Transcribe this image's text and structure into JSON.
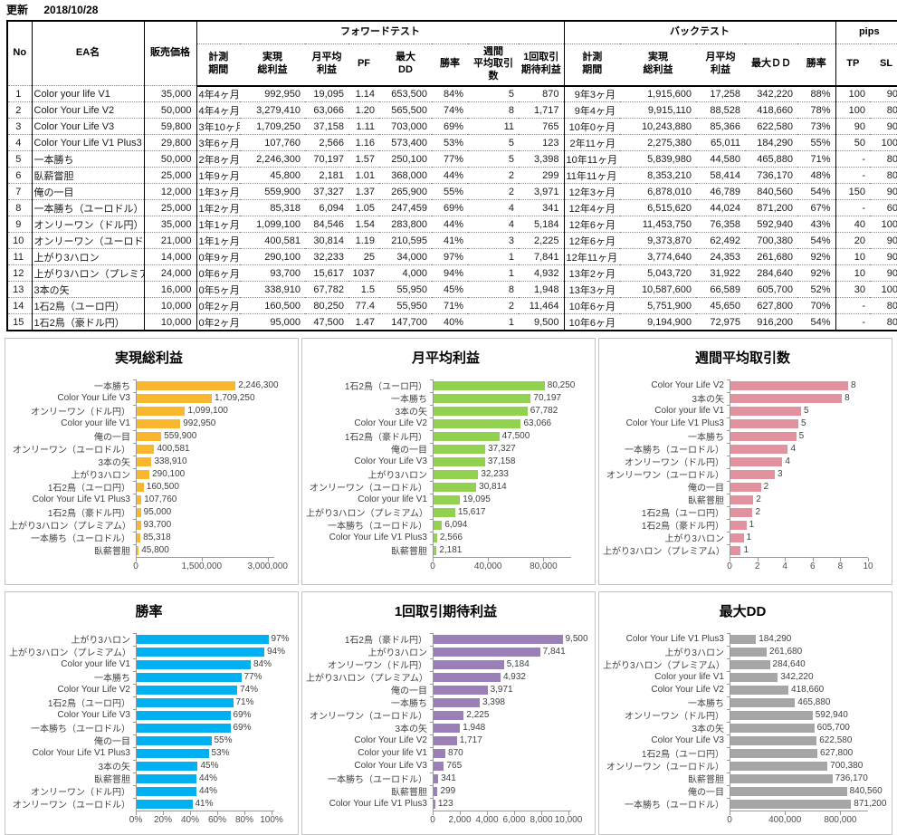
{
  "meta": {
    "update_label": "更新",
    "update_date": "2018/10/28"
  },
  "table": {
    "base_headers": {
      "no": "No",
      "name": "EA名",
      "price": "販売価格"
    },
    "group_headers": {
      "forward": "フォワードテスト",
      "back": "バックテスト",
      "pips": "pips"
    },
    "fwd_cols": [
      "計測\n期間",
      "実現\n総利益",
      "月平均\n利益",
      "PF",
      "最大\nDD",
      "勝率",
      "週間\n平均取引数",
      "1回取引\n期待利益"
    ],
    "back_cols": [
      "計測\n期間",
      "実現\n総利益",
      "月平均\n利益",
      "最大ＤＤ",
      "勝率"
    ],
    "pips_cols": [
      "TP",
      "SL"
    ],
    "rows": [
      [
        "1",
        "Color your life V1",
        "35,000",
        "4年4ヶ月",
        "992,950",
        "19,095",
        "1.14",
        "653,500",
        "84%",
        "5",
        "870",
        "9年3ヶ月",
        "1,915,600",
        "17,258",
        "342,220",
        "88%",
        "100",
        "90"
      ],
      [
        "2",
        "Color Your Life V2",
        "50,000",
        "4年4ヶ月",
        "3,279,410",
        "63,066",
        "1.20",
        "565,500",
        "74%",
        "8",
        "1,717",
        "9年4ヶ月",
        "9,915,110",
        "88,528",
        "418,660",
        "78%",
        "100",
        "80"
      ],
      [
        "3",
        "Color Your Life V3",
        "59,800",
        "3年10ヶ月",
        "1,709,250",
        "37,158",
        "1.11",
        "703,000",
        "69%",
        "11",
        "765",
        "10年0ヶ月",
        "10,243,880",
        "85,366",
        "622,580",
        "73%",
        "90",
        "90"
      ],
      [
        "4",
        "Color Your Life V1 Plus3",
        "29,800",
        "3年6ヶ月",
        "107,760",
        "2,566",
        "1.16",
        "573,400",
        "53%",
        "5",
        "123",
        "2年11ヶ月",
        "2,275,380",
        "65,011",
        "184,290",
        "55%",
        "50",
        "100"
      ],
      [
        "5",
        "一本勝ち",
        "50,000",
        "2年8ヶ月",
        "2,246,300",
        "70,197",
        "1.57",
        "250,100",
        "77%",
        "5",
        "3,398",
        "10年11ヶ月",
        "5,839,980",
        "44,580",
        "465,880",
        "71%",
        "-",
        "80"
      ],
      [
        "6",
        "臥薪嘗胆",
        "25,000",
        "1年9ヶ月",
        "45,800",
        "2,181",
        "1.01",
        "368,000",
        "44%",
        "2",
        "299",
        "11年11ヶ月",
        "8,353,210",
        "58,414",
        "736,170",
        "48%",
        "-",
        "80"
      ],
      [
        "7",
        "俺の一目",
        "12,000",
        "1年3ヶ月",
        "559,900",
        "37,327",
        "1.37",
        "265,900",
        "55%",
        "2",
        "3,971",
        "12年3ヶ月",
        "6,878,010",
        "46,789",
        "840,560",
        "54%",
        "150",
        "90"
      ],
      [
        "8",
        "一本勝ち（ユーロドル）",
        "25,000",
        "1年2ヶ月",
        "85,318",
        "6,094",
        "1.05",
        "247,459",
        "69%",
        "4",
        "341",
        "12年4ヶ月",
        "6,515,620",
        "44,024",
        "871,200",
        "67%",
        "-",
        "60"
      ],
      [
        "9",
        "オンリーワン（ドル円）",
        "35,000",
        "1年1ヶ月",
        "1,099,100",
        "84,546",
        "1.54",
        "283,800",
        "44%",
        "4",
        "5,184",
        "12年6ヶ月",
        "11,453,750",
        "76,358",
        "592,940",
        "43%",
        "40",
        "100"
      ],
      [
        "10",
        "オンリーワン（ユーロドル）",
        "21,000",
        "1年1ヶ月",
        "400,581",
        "30,814",
        "1.19",
        "210,595",
        "41%",
        "3",
        "2,225",
        "12年6ヶ月",
        "9,373,870",
        "62,492",
        "700,380",
        "54%",
        "20",
        "90"
      ],
      [
        "11",
        "上がり3ハロン",
        "14,000",
        "0年9ヶ月",
        "290,100",
        "32,233",
        "25",
        "34,000",
        "97%",
        "1",
        "7,841",
        "12年11ヶ月",
        "3,774,640",
        "24,353",
        "261,680",
        "92%",
        "10",
        "90"
      ],
      [
        "12",
        "上がり3ハロン（プレミアム）",
        "24,000",
        "0年6ヶ月",
        "93,700",
        "15,617",
        "1037",
        "4,000",
        "94%",
        "1",
        "4,932",
        "13年2ヶ月",
        "5,043,720",
        "31,922",
        "284,640",
        "92%",
        "10",
        "90"
      ],
      [
        "13",
        "3本の矢",
        "16,000",
        "0年5ヶ月",
        "338,910",
        "67,782",
        "1.5",
        "55,950",
        "45%",
        "8",
        "1,948",
        "13年3ヶ月",
        "10,587,600",
        "66,589",
        "605,700",
        "52%",
        "30",
        "100"
      ],
      [
        "14",
        "1石2鳥（ユーロ円）",
        "10,000",
        "0年2ヶ月",
        "160,500",
        "80,250",
        "77.4",
        "55,950",
        "71%",
        "2",
        "11,464",
        "10年6ヶ月",
        "5,751,900",
        "45,650",
        "627,800",
        "70%",
        "-",
        "80"
      ],
      [
        "15",
        "1石2鳥（豪ドル円）",
        "10,000",
        "0年2ヶ月",
        "95,000",
        "47,500",
        "1.47",
        "147,700",
        "40%",
        "1",
        "9,500",
        "10年6ヶ月",
        "9,194,900",
        "72,975",
        "916,200",
        "54%",
        "-",
        "80"
      ]
    ]
  },
  "chart_data": [
    {
      "type": "bar",
      "orientation": "horizontal",
      "title": "実現総利益",
      "color": "#FBB62F",
      "xmax": 3150000,
      "grid": false,
      "legend": false,
      "ticks": [
        {
          "v": 0,
          "label": "0"
        },
        {
          "v": 1500000,
          "label": "1,500,000"
        },
        {
          "v": 3000000,
          "label": "3,000,000"
        }
      ],
      "bars": [
        {
          "label": "一本勝ち",
          "value": 2246300,
          "text": "2,246,300"
        },
        {
          "label": "Color Your Life V3",
          "value": 1709250,
          "text": "1,709,250"
        },
        {
          "label": "オンリーワン（ドル円）",
          "value": 1099100,
          "text": "1,099,100"
        },
        {
          "label": "Color your life V1",
          "value": 992950,
          "text": "992,950"
        },
        {
          "label": "俺の一目",
          "value": 559900,
          "text": "559,900"
        },
        {
          "label": "オンリーワン（ユーロドル）",
          "value": 400581,
          "text": "400,581"
        },
        {
          "label": "3本の矢",
          "value": 338910,
          "text": "338,910"
        },
        {
          "label": "上がり3ハロン",
          "value": 290100,
          "text": "290,100"
        },
        {
          "label": "1石2鳥（ユーロ円）",
          "value": 160500,
          "text": "160,500"
        },
        {
          "label": "Color Your Life V1 Plus3",
          "value": 107760,
          "text": "107,760"
        },
        {
          "label": "1石2鳥（豪ドル円）",
          "value": 95000,
          "text": "95,000"
        },
        {
          "label": "上がり3ハロン（プレミアム）",
          "value": 93700,
          "text": "93,700"
        },
        {
          "label": "一本勝ち（ユーロドル）",
          "value": 85318,
          "text": "85,318"
        },
        {
          "label": "臥薪嘗胆",
          "value": 45800,
          "text": "45,800"
        }
      ]
    },
    {
      "type": "bar",
      "orientation": "horizontal",
      "title": "月平均利益",
      "color": "#92D050",
      "xmax": 100000,
      "grid": false,
      "legend": false,
      "ticks": [
        {
          "v": 0,
          "label": "0"
        },
        {
          "v": 40000,
          "label": "40,000"
        },
        {
          "v": 80000,
          "label": "80,000"
        }
      ],
      "bars": [
        {
          "label": "1石2鳥（ユーロ円）",
          "value": 80250,
          "text": "80,250"
        },
        {
          "label": "一本勝ち",
          "value": 70197,
          "text": "70,197"
        },
        {
          "label": "3本の矢",
          "value": 67782,
          "text": "67,782"
        },
        {
          "label": "Color Your Life V2",
          "value": 63066,
          "text": "63,066"
        },
        {
          "label": "1石2鳥（豪ドル円）",
          "value": 47500,
          "text": "47,500"
        },
        {
          "label": "俺の一目",
          "value": 37327,
          "text": "37,327"
        },
        {
          "label": "Color Your Life V3",
          "value": 37158,
          "text": "37,158"
        },
        {
          "label": "上がり3ハロン",
          "value": 32233,
          "text": "32,233"
        },
        {
          "label": "オンリーワン（ユーロドル）",
          "value": 30814,
          "text": "30,814"
        },
        {
          "label": "Color your life V1",
          "value": 19095,
          "text": "19,095"
        },
        {
          "label": "上がり3ハロン（プレミアム）",
          "value": 15617,
          "text": "15,617"
        },
        {
          "label": "一本勝ち（ユーロドル）",
          "value": 6094,
          "text": "6,094"
        },
        {
          "label": "Color Your Life V1 Plus3",
          "value": 2566,
          "text": "2,566"
        },
        {
          "label": "臥薪嘗胆",
          "value": 2181,
          "text": "2,181"
        }
      ]
    },
    {
      "type": "bar",
      "orientation": "horizontal",
      "title": "週間平均取引数",
      "color": "#E2929E",
      "xmax": 10,
      "grid": false,
      "legend": false,
      "ticks": [
        {
          "v": 0,
          "label": "0"
        },
        {
          "v": 2,
          "label": "2"
        },
        {
          "v": 4,
          "label": "4"
        },
        {
          "v": 6,
          "label": "6"
        },
        {
          "v": 8,
          "label": "8"
        },
        {
          "v": 10,
          "label": "10"
        }
      ],
      "bars": [
        {
          "label": "Color Your Life V2",
          "value": 8.5,
          "text": "8"
        },
        {
          "label": "3本の矢",
          "value": 8.05,
          "text": "8"
        },
        {
          "label": "Color your life V1",
          "value": 5.1,
          "text": "5"
        },
        {
          "label": "Color Your Life V1 Plus3",
          "value": 4.9,
          "text": "5"
        },
        {
          "label": "一本勝ち",
          "value": 4.75,
          "text": "5"
        },
        {
          "label": "一本勝ち（ユーロドル）",
          "value": 4.15,
          "text": "4"
        },
        {
          "label": "オンリーワン（ドル円）",
          "value": 3.75,
          "text": "4"
        },
        {
          "label": "オンリーワン（ユーロドル）",
          "value": 3.2,
          "text": "3"
        },
        {
          "label": "俺の一目",
          "value": 2.2,
          "text": "2"
        },
        {
          "label": "臥薪嘗胆",
          "value": 1.65,
          "text": "2"
        },
        {
          "label": "1石2鳥（ユーロ円）",
          "value": 1.6,
          "text": "2"
        },
        {
          "label": "1石2鳥（豪ドル円）",
          "value": 1.15,
          "text": "1"
        },
        {
          "label": "上がり3ハロン",
          "value": 0.95,
          "text": "1"
        },
        {
          "label": "上がり3ハロン（プレミアム）",
          "value": 0.75,
          "text": "1"
        }
      ]
    },
    {
      "type": "bar",
      "orientation": "horizontal",
      "title": "勝率",
      "color": "#00B0F0",
      "xmax": 102,
      "grid": false,
      "legend": false,
      "ticks": [
        {
          "v": 0,
          "label": "0%"
        },
        {
          "v": 20,
          "label": "20%"
        },
        {
          "v": 40,
          "label": "40%"
        },
        {
          "v": 60,
          "label": "60%"
        },
        {
          "v": 80,
          "label": "80%"
        },
        {
          "v": 100,
          "label": "100%"
        }
      ],
      "bars": [
        {
          "label": "上がり3ハロン",
          "value": 97,
          "text": "97%"
        },
        {
          "label": "上がり3ハロン（プレミアム）",
          "value": 94,
          "text": "94%"
        },
        {
          "label": "Color your life V1",
          "value": 84,
          "text": "84%"
        },
        {
          "label": "一本勝ち",
          "value": 77,
          "text": "77%"
        },
        {
          "label": "Color Your Life V2",
          "value": 74,
          "text": "74%"
        },
        {
          "label": "1石2鳥（ユーロ円）",
          "value": 71,
          "text": "71%"
        },
        {
          "label": "Color Your Life V3",
          "value": 69,
          "text": "69%"
        },
        {
          "label": "一本勝ち（ユーロドル）",
          "value": 69,
          "text": "69%"
        },
        {
          "label": "俺の一目",
          "value": 55,
          "text": "55%"
        },
        {
          "label": "Color Your Life V1 Plus3",
          "value": 53,
          "text": "53%"
        },
        {
          "label": "3本の矢",
          "value": 45,
          "text": "45%"
        },
        {
          "label": "臥薪嘗胆",
          "value": 44,
          "text": "44%"
        },
        {
          "label": "オンリーワン（ドル円）",
          "value": 44,
          "text": "44%"
        },
        {
          "label": "オンリーワン（ユーロドル）",
          "value": 41,
          "text": "41%"
        }
      ]
    },
    {
      "type": "bar",
      "orientation": "horizontal",
      "title": "1回取引期待利益",
      "color": "#9B80B8",
      "xmax": 10200,
      "grid": false,
      "legend": false,
      "ticks": [
        {
          "v": 0,
          "label": "0"
        },
        {
          "v": 2000,
          "label": "2,000"
        },
        {
          "v": 4000,
          "label": "4,000"
        },
        {
          "v": 6000,
          "label": "6,000"
        },
        {
          "v": 8000,
          "label": "8,000"
        },
        {
          "v": 10000,
          "label": "10,000"
        }
      ],
      "bars": [
        {
          "label": "1石2鳥（豪ドル円）",
          "value": 9500,
          "text": "9,500"
        },
        {
          "label": "上がり3ハロン",
          "value": 7841,
          "text": "7,841"
        },
        {
          "label": "オンリーワン（ドル円）",
          "value": 5184,
          "text": "5,184"
        },
        {
          "label": "上がり3ハロン（プレミアム）",
          "value": 4932,
          "text": "4,932"
        },
        {
          "label": "俺の一目",
          "value": 3971,
          "text": "3,971"
        },
        {
          "label": "一本勝ち",
          "value": 3398,
          "text": "3,398"
        },
        {
          "label": "オンリーワン（ユーロドル）",
          "value": 2225,
          "text": "2,225"
        },
        {
          "label": "3本の矢",
          "value": 1948,
          "text": "1,948"
        },
        {
          "label": "Color Your Life V2",
          "value": 1717,
          "text": "1,717"
        },
        {
          "label": "Color your life V1",
          "value": 870,
          "text": "870"
        },
        {
          "label": "Color Your Life V3",
          "value": 765,
          "text": "765"
        },
        {
          "label": "一本勝ち（ユーロドル）",
          "value": 341,
          "text": "341"
        },
        {
          "label": "臥薪嘗胆",
          "value": 299,
          "text": "299"
        },
        {
          "label": "Color Your Life V1 Plus3",
          "value": 123,
          "text": "123"
        }
      ]
    },
    {
      "type": "bar",
      "orientation": "horizontal",
      "title": "最大DD",
      "color": "#A6A6A6",
      "xmax": 1000000,
      "grid": false,
      "legend": false,
      "ticks": [
        {
          "v": 0,
          "label": "0"
        },
        {
          "v": 400000,
          "label": "400,000"
        },
        {
          "v": 800000,
          "label": "800,000"
        }
      ],
      "bars": [
        {
          "label": "Color Your Life V1 Plus3",
          "value": 184290,
          "text": "184,290"
        },
        {
          "label": "上がり3ハロン",
          "value": 261680,
          "text": "261,680"
        },
        {
          "label": "上がり3ハロン（プレミアム）",
          "value": 284640,
          "text": "284,640"
        },
        {
          "label": "Color your life V1",
          "value": 342220,
          "text": "342,220"
        },
        {
          "label": "Color Your Life V2",
          "value": 418660,
          "text": "418,660"
        },
        {
          "label": "一本勝ち",
          "value": 465880,
          "text": "465,880"
        },
        {
          "label": "オンリーワン（ドル円）",
          "value": 592940,
          "text": "592,940"
        },
        {
          "label": "3本の矢",
          "value": 605700,
          "text": "605,700"
        },
        {
          "label": "Color Your Life V3",
          "value": 622580,
          "text": "622,580"
        },
        {
          "label": "1石2鳥（ユーロ円）",
          "value": 627800,
          "text": "627,800"
        },
        {
          "label": "オンリーワン（ユーロドル）",
          "value": 700380,
          "text": "700,380"
        },
        {
          "label": "臥薪嘗胆",
          "value": 736170,
          "text": "736,170"
        },
        {
          "label": "俺の一目",
          "value": 840560,
          "text": "840,560"
        },
        {
          "label": "一本勝ち（ユーロドル）",
          "value": 871200,
          "text": "871,200"
        }
      ]
    }
  ]
}
